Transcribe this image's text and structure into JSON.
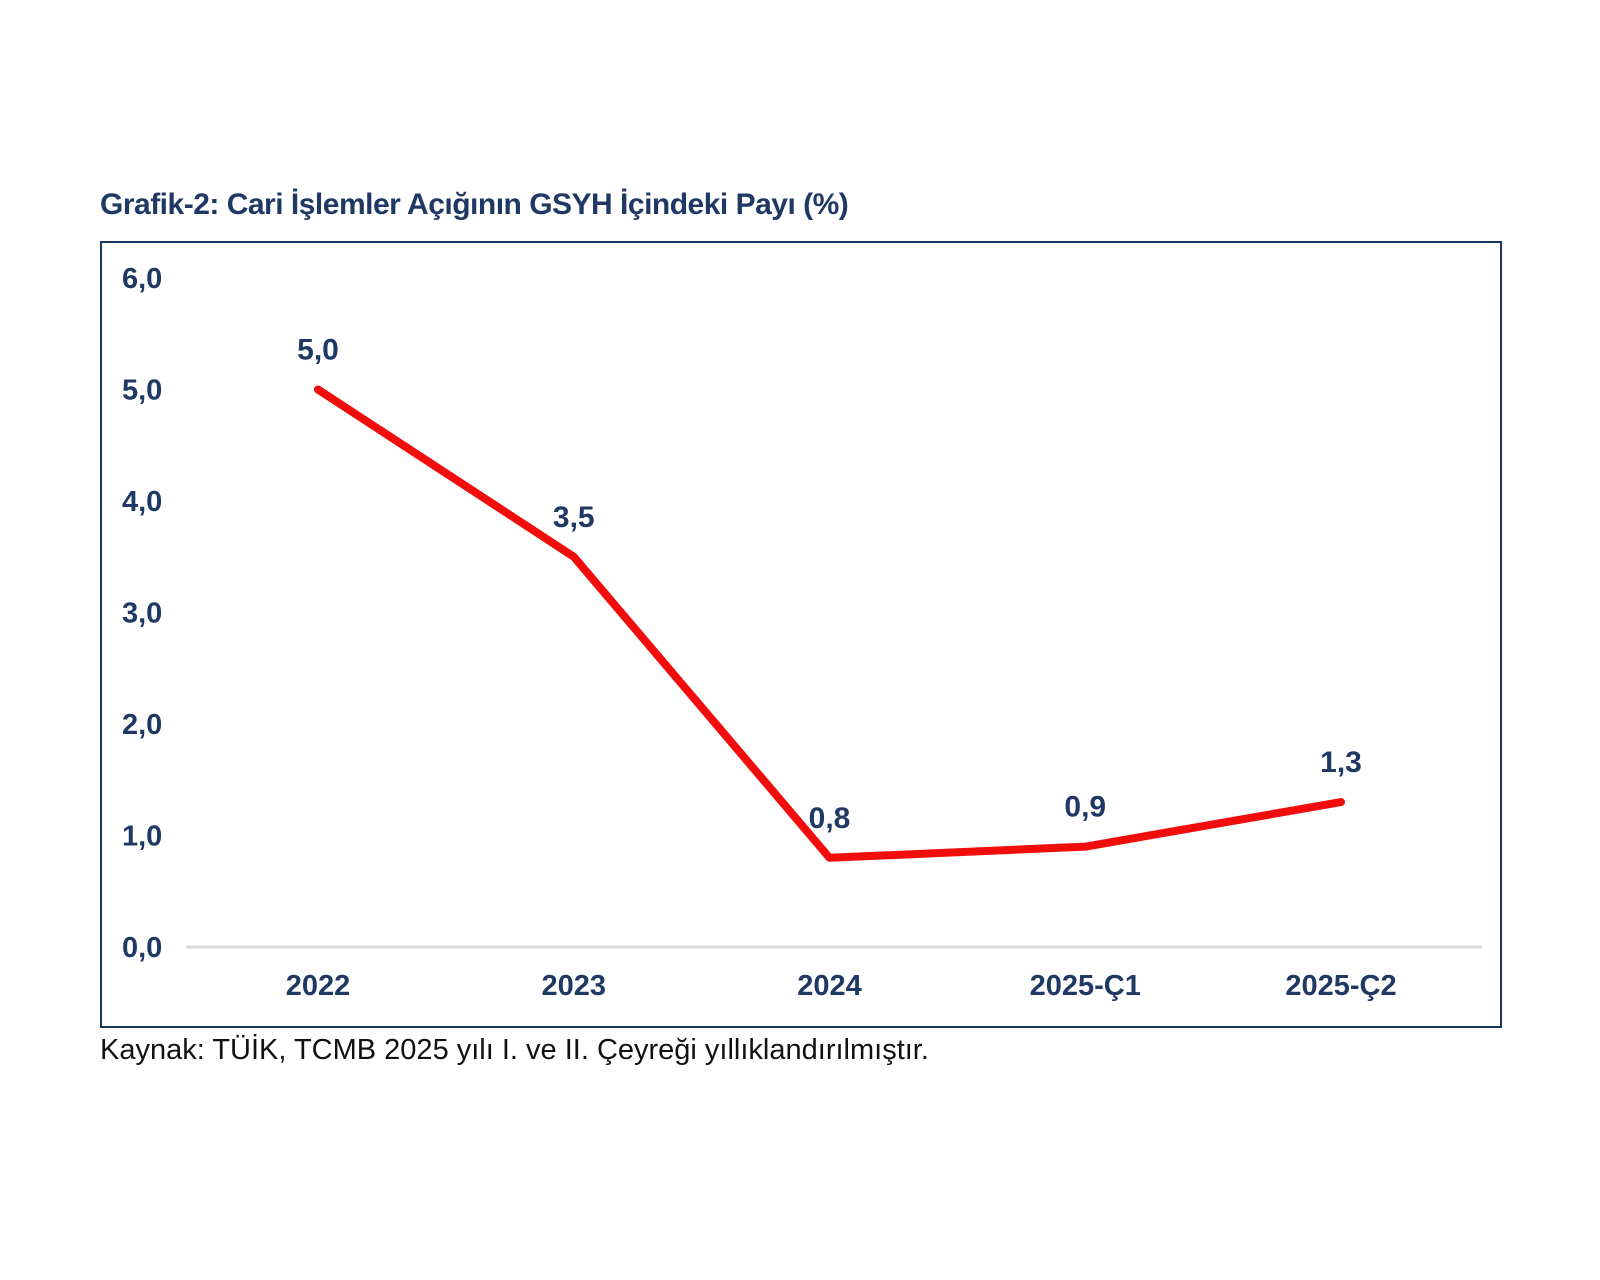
{
  "page_title": "Grafik-2: Cari İşlemler Açığının GSYH İçindeki Payı (%)",
  "source_note": "Kaynak: TÜİK, TCMB 2025 yılı I. ve II. Çeyreği yıllıklandırılmıştır.",
  "colors": {
    "navy_text": "#1f3864",
    "chart_border": "#17365d",
    "series_red": "#f20d0d",
    "baseline_gray": "#d9d9d9",
    "source_text": "#111111",
    "background": "#ffffff"
  },
  "chart_data": {
    "type": "line",
    "title": "Grafik-2: Cari İşlemler Açığının GSYH İçindeki Payı (%)",
    "categories": [
      "2022",
      "2023",
      "2024",
      "2025-Ç1",
      "2025-Ç2"
    ],
    "values": [
      5.0,
      3.5,
      0.8,
      0.9,
      1.3
    ],
    "data_labels": [
      "5,0",
      "3,5",
      "0,8",
      "0,9",
      "1,3"
    ],
    "y_ticks": [
      {
        "label": "6,0",
        "value": 6
      },
      {
        "label": "5,0",
        "value": 5
      },
      {
        "label": "4,0",
        "value": 4
      },
      {
        "label": "3,0",
        "value": 3
      },
      {
        "label": "2,0",
        "value": 2
      },
      {
        "label": "1,0",
        "value": 1
      },
      {
        "label": "0,0",
        "value": 0
      }
    ],
    "ylim": [
      0,
      6
    ],
    "xlabel": "",
    "ylabel": "",
    "legend": "none",
    "grid": "zero-baseline-only",
    "series_color": "#f20d0d",
    "line_width": 8
  }
}
